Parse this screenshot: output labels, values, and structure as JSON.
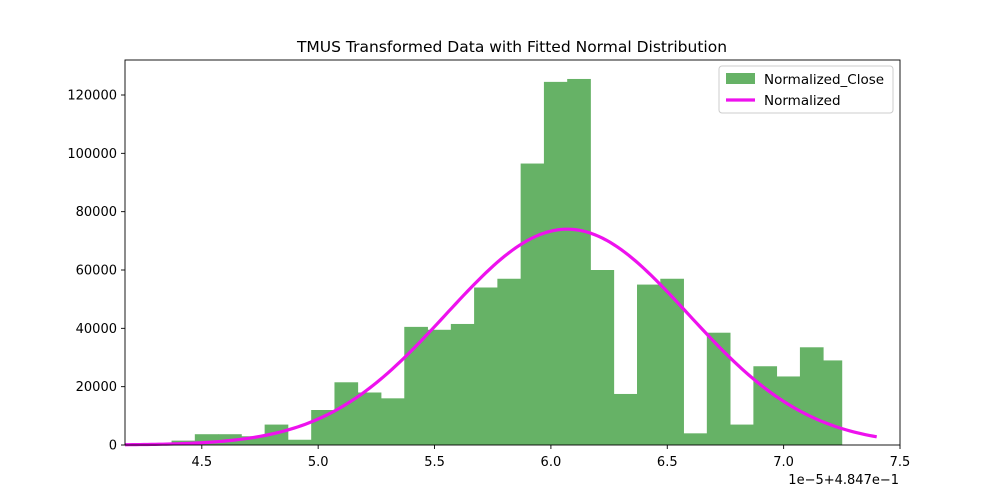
{
  "chart_data": {
    "type": "bar",
    "title": "TMUS Transformed Data with Fitted Normal Distribution",
    "xlabel": "",
    "ylabel": "",
    "x_offset_label": "1e−5+4.847e−1",
    "xlim": [
      4.17,
      7.5
    ],
    "ylim": [
      0,
      132000
    ],
    "x_ticks": [
      4.5,
      5.0,
      5.5,
      6.0,
      6.5,
      7.0,
      7.5
    ],
    "x_tick_labels": [
      "4.5",
      "5.0",
      "5.5",
      "6.0",
      "6.5",
      "7.0",
      "7.5"
    ],
    "y_ticks": [
      0,
      20000,
      40000,
      60000,
      80000,
      100000,
      120000
    ],
    "y_tick_labels": [
      "0",
      "20000",
      "40000",
      "60000",
      "80000",
      "100000",
      "120000"
    ],
    "grid": false,
    "legend_position": "top-right",
    "series": [
      {
        "name": "Normalized_Close",
        "type": "histogram",
        "color": "#66b266",
        "bin_edges": [
          4.17,
          4.27,
          4.37,
          4.47,
          4.57,
          4.67,
          4.77,
          4.87,
          4.97,
          5.07,
          5.17,
          5.27,
          5.37,
          5.47,
          5.57,
          5.67,
          5.77,
          5.87,
          5.97,
          6.07,
          6.17,
          6.27,
          6.37,
          6.47,
          6.57,
          6.67,
          6.77,
          6.87,
          6.97,
          7.07,
          7.17,
          7.25
        ],
        "values": [
          0,
          0,
          1500,
          3700,
          3700,
          3000,
          7000,
          1800,
          12000,
          21500,
          18000,
          16000,
          40500,
          39500,
          41500,
          54000,
          57000,
          96500,
          124500,
          125500,
          60000,
          17500,
          55000,
          57000,
          4000,
          38500,
          7000,
          27000,
          23500,
          33500,
          29000
        ]
      },
      {
        "name": "Normalized",
        "type": "line",
        "color": "#ee11ee",
        "mean": 6.07,
        "std": 0.52,
        "peak": 74000,
        "x_range": [
          4.17,
          7.4
        ]
      }
    ]
  }
}
